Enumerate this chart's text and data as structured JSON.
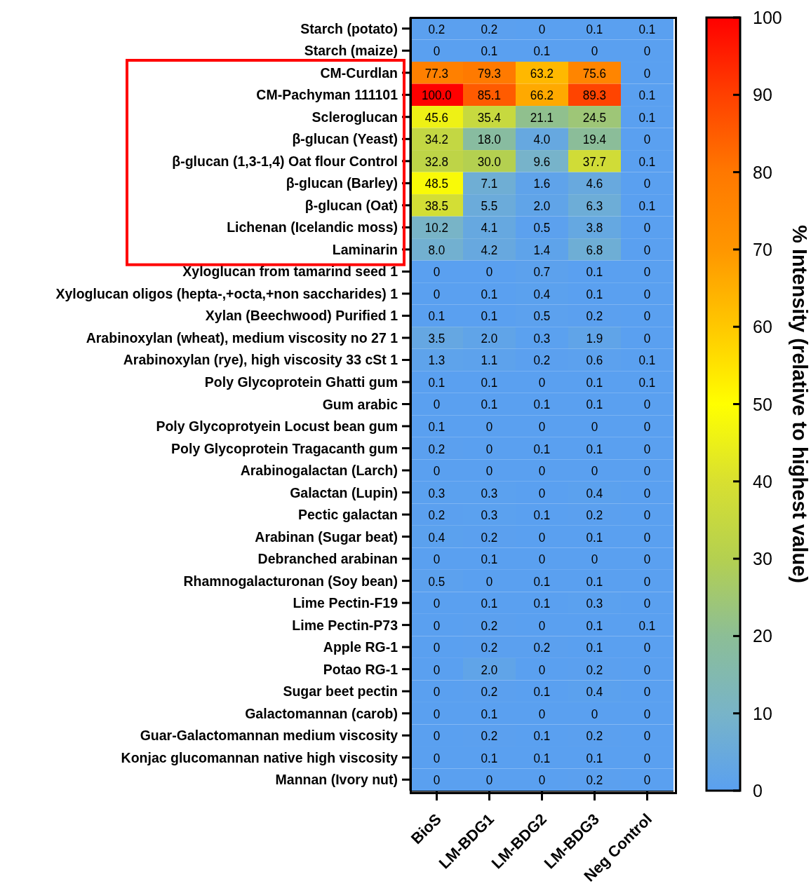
{
  "chart_data": {
    "type": "heatmap",
    "clabel": "% Intensity (relative to highest value)",
    "categories": [
      "BioS",
      "LM-BDG1",
      "LM-BDG2",
      "LM-BDG3",
      "Neg Control"
    ],
    "y_categories": [
      "Starch (potato)",
      "Starch (maize)",
      "CM-Curdlan",
      "CM-Pachyman 111101",
      "Scleroglucan",
      "β-glucan (Yeast)",
      "β-glucan (1,3-1,4) Oat flour Control",
      "β-glucan (Barley)",
      "β-glucan (Oat)",
      "Lichenan (Icelandic moss)",
      "Laminarin",
      "Xyloglucan from tamarind seed 1",
      "Xyloglucan oligos (hepta-,+octa,+non saccharides) 1",
      "Xylan (Beechwood) Purified 1",
      "Arabinoxylan (wheat), medium viscosity no 27 1",
      "Arabinoxylan (rye), high viscosity 33 cSt 1",
      "Poly Glycoprotein Ghatti gum",
      "Gum arabic",
      "Poly Glycoprotyein Locust bean gum",
      "Poly Glycoprotein Tragacanth gum",
      "Arabinogalactan (Larch) ",
      "Galactan (Lupin) ",
      "Pectic galactan",
      "Arabinan (Sugar beat)",
      "Debranched arabinan",
      "Rhamnogalacturonan (Soy bean)",
      "Lime Pectin-F19",
      "Lime Pectin-P73",
      "Apple RG-1",
      "Potao RG-1",
      "Sugar beet pectin",
      "Galactomannan (carob)",
      "Guar-Galactomannan medium viscosity",
      "Konjac glucomannan native high viscosity",
      "Mannan (Ivory nut)"
    ],
    "cells": [
      [
        0.2,
        0.2,
        0,
        0.1,
        0.1
      ],
      [
        0,
        0.1,
        0.1,
        0,
        0
      ],
      [
        77.3,
        79.3,
        63.2,
        75.6,
        0
      ],
      [
        100.0,
        85.1,
        66.2,
        89.3,
        0.1
      ],
      [
        45.6,
        35.4,
        21.1,
        24.5,
        0.1
      ],
      [
        34.2,
        18.0,
        4.0,
        19.4,
        0
      ],
      [
        32.8,
        30.0,
        9.6,
        37.7,
        0.1
      ],
      [
        48.5,
        7.1,
        1.6,
        4.6,
        0
      ],
      [
        38.5,
        5.5,
        2.0,
        6.3,
        0.1
      ],
      [
        10.2,
        4.1,
        0.5,
        3.8,
        0
      ],
      [
        8.0,
        4.2,
        1.4,
        6.8,
        0
      ],
      [
        0,
        0,
        0.7,
        0.1,
        0
      ],
      [
        0,
        0.1,
        0.4,
        0.1,
        0
      ],
      [
        0.1,
        0.1,
        0.5,
        0.2,
        0
      ],
      [
        3.5,
        2.0,
        0.3,
        1.9,
        0
      ],
      [
        1.3,
        1.1,
        0.2,
        0.6,
        0.1
      ],
      [
        0.1,
        0.1,
        0,
        0.1,
        0.1
      ],
      [
        0,
        0.1,
        0.1,
        0.1,
        0
      ],
      [
        0.1,
        0,
        0,
        0,
        0
      ],
      [
        0.2,
        0,
        0.1,
        0.1,
        0
      ],
      [
        0,
        0,
        0,
        0,
        0
      ],
      [
        0.3,
        0.3,
        0,
        0.4,
        0
      ],
      [
        0.2,
        0.3,
        0.1,
        0.2,
        0
      ],
      [
        0.4,
        0.2,
        0,
        0.1,
        0
      ],
      [
        0,
        0.1,
        0,
        0,
        0
      ],
      [
        0.5,
        0,
        0.1,
        0.1,
        0
      ],
      [
        0,
        0.1,
        0.1,
        0.3,
        0
      ],
      [
        0,
        0.2,
        0,
        0.1,
        0.1
      ],
      [
        0,
        0.2,
        0.2,
        0.1,
        0
      ],
      [
        0,
        2.0,
        0,
        0.2,
        0
      ],
      [
        0,
        0.2,
        0.1,
        0.4,
        0
      ],
      [
        0,
        0.1,
        0,
        0,
        0
      ],
      [
        0,
        0.2,
        0.1,
        0.2,
        0
      ],
      [
        0,
        0.1,
        0.1,
        0.1,
        0
      ],
      [
        0,
        0,
        0,
        0.2,
        0
      ]
    ],
    "cell_labels": [
      [
        "0.2",
        "0.2",
        "0",
        "0.1",
        "0.1"
      ],
      [
        "0",
        "0.1",
        "0.1",
        "0",
        "0"
      ],
      [
        "77.3",
        "79.3",
        "63.2",
        "75.6",
        "0"
      ],
      [
        "100.0",
        "85.1",
        "66.2",
        "89.3",
        "0.1"
      ],
      [
        "45.6",
        "35.4",
        "21.1",
        "24.5",
        "0.1"
      ],
      [
        "34.2",
        "18.0",
        "4.0",
        "19.4",
        "0"
      ],
      [
        "32.8",
        "30.0",
        "9.6",
        "37.7",
        "0.1"
      ],
      [
        "48.5",
        "7.1",
        "1.6",
        "4.6",
        "0"
      ],
      [
        "38.5",
        "5.5",
        "2.0",
        "6.3",
        "0.1"
      ],
      [
        "10.2",
        "4.1",
        "0.5",
        "3.8",
        "0"
      ],
      [
        "8.0",
        "4.2",
        "1.4",
        "6.8",
        "0"
      ],
      [
        "0",
        "0",
        "0.7",
        "0.1",
        "0"
      ],
      [
        "0",
        "0.1",
        "0.4",
        "0.1",
        "0"
      ],
      [
        "0.1",
        "0.1",
        "0.5",
        "0.2",
        "0"
      ],
      [
        "3.5",
        "2.0",
        "0.3",
        "1.9",
        "0"
      ],
      [
        "1.3",
        "1.1",
        "0.2",
        "0.6",
        "0.1"
      ],
      [
        "0.1",
        "0.1",
        "0",
        "0.1",
        "0.1"
      ],
      [
        "0",
        "0.1",
        "0.1",
        "0.1",
        "0"
      ],
      [
        "0.1",
        "0",
        "0",
        "0",
        "0"
      ],
      [
        "0.2",
        "0",
        "0.1",
        "0.1",
        "0"
      ],
      [
        "0",
        "0",
        "0",
        "0",
        "0"
      ],
      [
        "0.3",
        "0.3",
        "0",
        "0.4",
        "0"
      ],
      [
        "0.2",
        "0.3",
        "0.1",
        "0.2",
        "0"
      ],
      [
        "0.4",
        "0.2",
        "0",
        "0.1",
        "0"
      ],
      [
        "0",
        "0.1",
        "0",
        "0",
        "0"
      ],
      [
        "0.5",
        "0",
        "0.1",
        "0.1",
        "0"
      ],
      [
        "0",
        "0.1",
        "0.1",
        "0.3",
        "0"
      ],
      [
        "0",
        "0.2",
        "0",
        "0.1",
        "0.1"
      ],
      [
        "0",
        "0.2",
        "0.2",
        "0.1",
        "0"
      ],
      [
        "0",
        "2.0",
        "0",
        "0.2",
        "0"
      ],
      [
        "0",
        "0.2",
        "0.1",
        "0.4",
        "0"
      ],
      [
        "0",
        "0.1",
        "0",
        "0",
        "0"
      ],
      [
        "0",
        "0.2",
        "0.1",
        "0.2",
        "0"
      ],
      [
        "0",
        "0.1",
        "0.1",
        "0.1",
        "0"
      ],
      [
        "0",
        "0",
        "0",
        "0.2",
        "0"
      ]
    ],
    "clim": [
      0,
      100
    ],
    "cticks": [
      0,
      10,
      20,
      30,
      40,
      50,
      60,
      70,
      80,
      90,
      100
    ]
  }
}
